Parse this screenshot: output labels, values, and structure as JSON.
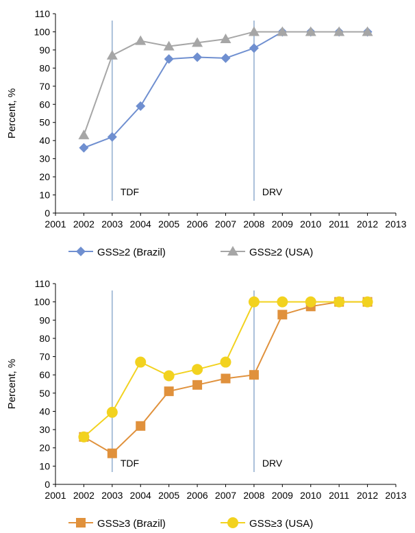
{
  "chart_data": [
    {
      "type": "line",
      "ylabel": "Percent, %",
      "xlabel": "",
      "x": [
        2002,
        2003,
        2004,
        2005,
        2006,
        2007,
        2008,
        2009,
        2010,
        2011,
        2012
      ],
      "xlim": [
        2001,
        2013
      ],
      "ylim": [
        0,
        110
      ],
      "x_ticks": [
        "2001",
        "2002",
        "2003",
        "2004",
        "2005",
        "2006",
        "2007",
        "2008",
        "2009",
        "2010",
        "2011",
        "2012",
        "2013"
      ],
      "y_ticks": [
        "0",
        "10",
        "20",
        "30",
        "40",
        "50",
        "60",
        "70",
        "80",
        "90",
        "100",
        "110"
      ],
      "grid": false,
      "legend_position": "bottom",
      "series": [
        {
          "name": "GSS≥2 (Brazil)",
          "marker": "diamond",
          "color": "#6f8fd0",
          "values": [
            36,
            42,
            59,
            85,
            86,
            85.5,
            91,
            100,
            100,
            100,
            100
          ]
        },
        {
          "name": "GSS≥2 (USA)",
          "marker": "triangle",
          "color": "#a6a6a6",
          "values": [
            43,
            87,
            95,
            92,
            94,
            96,
            100,
            100,
            100,
            100,
            100
          ]
        }
      ],
      "annotations": [
        {
          "x": 2003,
          "label": "TDF"
        },
        {
          "x": 2008,
          "label": "DRV"
        }
      ]
    },
    {
      "type": "line",
      "ylabel": "Percent, %",
      "xlabel": "",
      "x": [
        2002,
        2003,
        2004,
        2005,
        2006,
        2007,
        2008,
        2009,
        2010,
        2011,
        2012
      ],
      "xlim": [
        2001,
        2013
      ],
      "ylim": [
        0,
        110
      ],
      "x_ticks": [
        "2001",
        "2002",
        "2003",
        "2004",
        "2005",
        "2006",
        "2007",
        "2008",
        "2009",
        "2010",
        "2011",
        "2012",
        "2013"
      ],
      "y_ticks": [
        "0",
        "10",
        "20",
        "30",
        "40",
        "50",
        "60",
        "70",
        "80",
        "90",
        "100",
        "110"
      ],
      "grid": false,
      "legend_position": "bottom",
      "series": [
        {
          "name": "GSS≥3 (Brazil)",
          "marker": "square",
          "color": "#e0913c",
          "values": [
            26,
            17,
            32,
            51,
            54.5,
            58,
            60,
            93,
            97.5,
            100,
            100
          ]
        },
        {
          "name": "GSS≥3 (USA)",
          "marker": "circle",
          "color": "#f2d21f",
          "values": [
            26,
            39.5,
            67,
            59.5,
            63,
            67,
            100,
            100,
            100,
            100,
            100
          ]
        }
      ],
      "annotations": [
        {
          "x": 2003,
          "label": "TDF"
        },
        {
          "x": 2008,
          "label": "DRV"
        }
      ]
    }
  ]
}
